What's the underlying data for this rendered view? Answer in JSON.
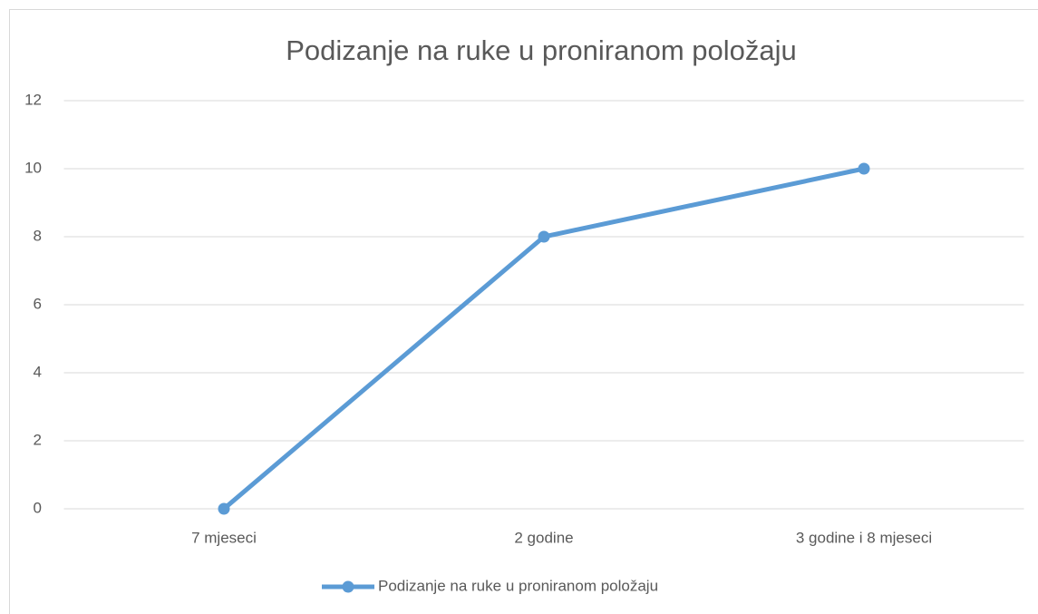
{
  "chart_data": {
    "type": "line",
    "title": "Podizanje na ruke u proniranom položaju",
    "categories": [
      "7 mjeseci",
      "2 godine",
      "3 godine i 8 mjeseci"
    ],
    "series": [
      {
        "name": "Podizanje na ruke u proniranom položaju",
        "color": "#5b9bd5",
        "values": [
          0,
          8,
          10
        ]
      }
    ],
    "ylim": [
      0,
      12
    ],
    "yticks": [
      0,
      2,
      4,
      6,
      8,
      10,
      12
    ],
    "grid": true,
    "legend": "bottom"
  }
}
